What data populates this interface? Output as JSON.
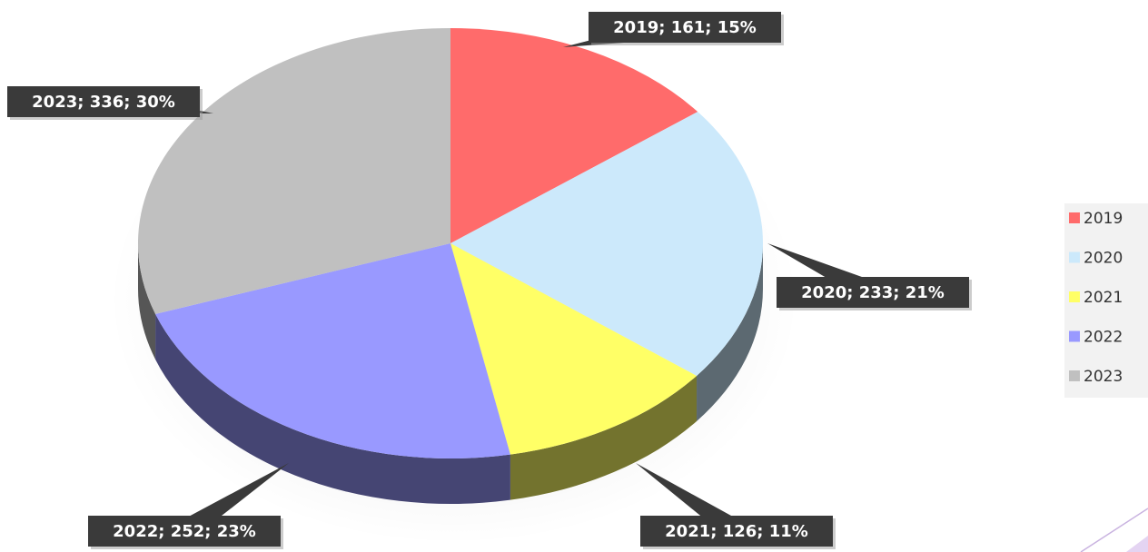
{
  "chart_data": {
    "type": "pie",
    "categories": [
      "2019",
      "2020",
      "2021",
      "2022",
      "2023"
    ],
    "values": [
      161,
      233,
      126,
      252,
      336
    ],
    "value_labels": [
      "2019; 161; 15%",
      "2020; 233; 21%",
      "2021; 126; 11%",
      "2022; 252; 23%",
      "2023; 336; 30%"
    ],
    "colors": [
      "#ff6b6b",
      "#cce9fb",
      "#ffff66",
      "#9999ff",
      "#c0c0c0"
    ],
    "legend": "right"
  }
}
